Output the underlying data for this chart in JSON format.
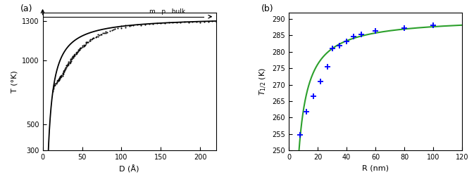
{
  "panel_a": {
    "title": "(a)",
    "xlabel": "D (Å)",
    "ylabel": "T (°K)",
    "xlim": [
      0,
      220
    ],
    "ylim": [
      300,
      1370
    ],
    "yticks": [
      300,
      500,
      1000,
      1300
    ],
    "xticks": [
      0,
      50,
      100,
      150,
      200
    ],
    "bulk_T": 1337,
    "bulk_label": "m . p . bulk",
    "curve_color": "black",
    "scatter_color": "black",
    "scatter_ms": 1.5,
    "curve_A": 5.6,
    "scatter_data": [
      [
        13,
        760
      ],
      [
        13,
        770
      ],
      [
        14,
        780
      ],
      [
        14,
        790
      ],
      [
        15,
        800
      ],
      [
        15,
        810
      ],
      [
        16,
        810
      ],
      [
        16,
        820
      ],
      [
        17,
        820
      ],
      [
        17,
        825
      ],
      [
        18,
        830
      ],
      [
        18,
        840
      ],
      [
        19,
        840
      ],
      [
        19,
        845
      ],
      [
        20,
        840
      ],
      [
        20,
        845
      ],
      [
        20,
        850
      ],
      [
        21,
        845
      ],
      [
        21,
        855
      ],
      [
        21,
        860
      ],
      [
        22,
        855
      ],
      [
        22,
        865
      ],
      [
        22,
        870
      ],
      [
        23,
        865
      ],
      [
        23,
        875
      ],
      [
        23,
        880
      ],
      [
        24,
        875
      ],
      [
        24,
        882
      ],
      [
        25,
        880
      ],
      [
        25,
        890
      ],
      [
        25,
        900
      ],
      [
        26,
        895
      ],
      [
        26,
        905
      ],
      [
        26,
        915
      ],
      [
        27,
        910
      ],
      [
        27,
        920
      ],
      [
        28,
        920
      ],
      [
        28,
        935
      ],
      [
        29,
        935
      ],
      [
        29,
        945
      ],
      [
        30,
        945
      ],
      [
        30,
        958
      ],
      [
        31,
        952
      ],
      [
        31,
        962
      ],
      [
        32,
        958
      ],
      [
        32,
        968
      ],
      [
        33,
        965
      ],
      [
        33,
        978
      ],
      [
        33,
        988
      ],
      [
        34,
        975
      ],
      [
        34,
        988
      ],
      [
        35,
        982
      ],
      [
        35,
        998
      ],
      [
        35,
        1008
      ],
      [
        36,
        992
      ],
      [
        36,
        1008
      ],
      [
        37,
        1008
      ],
      [
        37,
        1018
      ],
      [
        38,
        1018
      ],
      [
        38,
        1028
      ],
      [
        39,
        1022
      ],
      [
        39,
        1032
      ],
      [
        40,
        1028
      ],
      [
        40,
        1042
      ],
      [
        41,
        1038
      ],
      [
        41,
        1048
      ],
      [
        42,
        1048
      ],
      [
        42,
        1058
      ],
      [
        43,
        1052
      ],
      [
        43,
        1062
      ],
      [
        44,
        1062
      ],
      [
        45,
        1068
      ],
      [
        45,
        1078
      ],
      [
        46,
        1078
      ],
      [
        46,
        1082
      ],
      [
        47,
        1078
      ],
      [
        47,
        1088
      ],
      [
        48,
        1088
      ],
      [
        48,
        1098
      ],
      [
        49,
        1098
      ],
      [
        50,
        1102
      ],
      [
        50,
        1112
      ],
      [
        52,
        1108
      ],
      [
        52,
        1118
      ],
      [
        53,
        1112
      ],
      [
        54,
        1118
      ],
      [
        55,
        1128
      ],
      [
        55,
        1138
      ],
      [
        56,
        1138
      ],
      [
        57,
        1142
      ],
      [
        58,
        1142
      ],
      [
        59,
        1148
      ],
      [
        60,
        1152
      ],
      [
        60,
        1162
      ],
      [
        62,
        1162
      ],
      [
        63,
        1168
      ],
      [
        64,
        1172
      ],
      [
        65,
        1172
      ],
      [
        67,
        1178
      ],
      [
        68,
        1182
      ],
      [
        70,
        1182
      ],
      [
        70,
        1198
      ],
      [
        72,
        1192
      ],
      [
        74,
        1198
      ],
      [
        75,
        1202
      ],
      [
        76,
        1212
      ],
      [
        78,
        1212
      ],
      [
        80,
        1212
      ],
      [
        80,
        1222
      ],
      [
        82,
        1218
      ],
      [
        85,
        1228
      ],
      [
        88,
        1232
      ],
      [
        90,
        1238
      ],
      [
        92,
        1242
      ],
      [
        95,
        1248
      ],
      [
        100,
        1248
      ],
      [
        100,
        1262
      ],
      [
        105,
        1252
      ],
      [
        105,
        1268
      ],
      [
        110,
        1262
      ],
      [
        112,
        1268
      ],
      [
        115,
        1268
      ],
      [
        120,
        1278
      ],
      [
        125,
        1272
      ],
      [
        130,
        1278
      ],
      [
        135,
        1282
      ],
      [
        140,
        1282
      ],
      [
        145,
        1288
      ],
      [
        150,
        1288
      ],
      [
        155,
        1288
      ],
      [
        160,
        1290
      ],
      [
        165,
        1292
      ],
      [
        170,
        1292
      ],
      [
        175,
        1292
      ],
      [
        180,
        1295
      ],
      [
        185,
        1292
      ],
      [
        190,
        1296
      ],
      [
        195,
        1298
      ],
      [
        200,
        1292
      ],
      [
        205,
        1298
      ],
      [
        210,
        1295
      ],
      [
        215,
        1300
      ],
      [
        220,
        1296
      ]
    ]
  },
  "panel_b": {
    "title": "(b)",
    "xlabel": "R (nm)",
    "ylabel": "T_{1/2} (K)",
    "xlim": [
      0,
      120
    ],
    "ylim": [
      250,
      292
    ],
    "yticks": [
      250,
      255,
      260,
      265,
      270,
      275,
      280,
      285,
      290
    ],
    "xticks": [
      0,
      20,
      40,
      60,
      80,
      100,
      120
    ],
    "T_bulk": 290.5,
    "curve_A": 3.3,
    "curve_color": "#2ca02c",
    "marker_color": "blue",
    "marker_size": 6,
    "data_points": [
      [
        8,
        254.8
      ],
      [
        12,
        261.8
      ],
      [
        17,
        266.5
      ],
      [
        22,
        271.0
      ],
      [
        27,
        275.5
      ],
      [
        30,
        281.0
      ],
      [
        35,
        281.8
      ],
      [
        40,
        283.2
      ],
      [
        45,
        284.6
      ],
      [
        50,
        285.3
      ],
      [
        60,
        286.3
      ],
      [
        80,
        287.3
      ],
      [
        100,
        288.1
      ]
    ]
  }
}
